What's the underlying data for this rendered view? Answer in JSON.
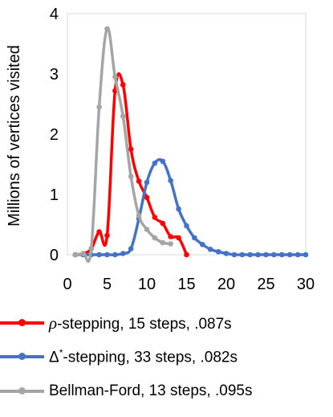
{
  "chart_data": {
    "type": "line",
    "title": "",
    "xlabel": "",
    "ylabel": "Millions of vertices visited",
    "xlim": [
      0,
      30
    ],
    "ylim": [
      0,
      4
    ],
    "xticks": [
      0,
      5,
      10,
      15,
      20,
      25,
      30
    ],
    "yticks": [
      0,
      1,
      2,
      3,
      4
    ],
    "grid": false,
    "legend_position": "bottom",
    "series": [
      {
        "name": "ρ-stepping, 15 steps, .087s",
        "color": "#ff0000",
        "x": [
          1,
          2,
          3,
          4,
          5,
          6,
          7,
          8,
          9,
          10,
          11,
          12,
          13,
          14,
          15
        ],
        "y": [
          0,
          0.02,
          0.1,
          0.38,
          0.32,
          2.72,
          2.82,
          1.75,
          1.22,
          0.95,
          0.62,
          0.52,
          0.3,
          0.28,
          0
        ]
      },
      {
        "name": "Δ*-stepping, 33 steps, .082s",
        "color": "#4472c4",
        "x": [
          1,
          2,
          3,
          4,
          5,
          6,
          7,
          8,
          9,
          10,
          11,
          12,
          13,
          14,
          15,
          16,
          17,
          18,
          19,
          20,
          21,
          22,
          23,
          24,
          25,
          26,
          27,
          28,
          29,
          30
        ],
        "y": [
          0,
          0,
          0,
          0,
          0,
          0,
          0.02,
          0.1,
          0.6,
          1.2,
          1.52,
          1.55,
          1.23,
          0.76,
          0.48,
          0.28,
          0.17,
          0.09,
          0.05,
          0.02,
          0,
          0,
          0,
          0,
          0,
          0,
          0,
          0,
          0,
          0
        ]
      },
      {
        "name": "Bellman-Ford, 13 steps, .095s",
        "color": "#a5a5a5",
        "x": [
          1,
          2,
          3,
          4,
          5,
          6,
          7,
          8,
          9,
          10,
          11,
          12,
          13
        ],
        "y": [
          0,
          0.02,
          0.1,
          2.45,
          3.75,
          2.95,
          2.3,
          1.3,
          0.65,
          0.42,
          0.28,
          0.2,
          0.18
        ]
      }
    ]
  },
  "legend": {
    "rho": {
      "symbol": "ρ",
      "text": "-stepping, 15 steps, .087s"
    },
    "delta": {
      "symbol": "Δ",
      "sup": "*",
      "text": "-stepping, 33 steps, .082s"
    },
    "bellman": {
      "text": "Bellman-Ford, 13 steps, .095s"
    }
  }
}
